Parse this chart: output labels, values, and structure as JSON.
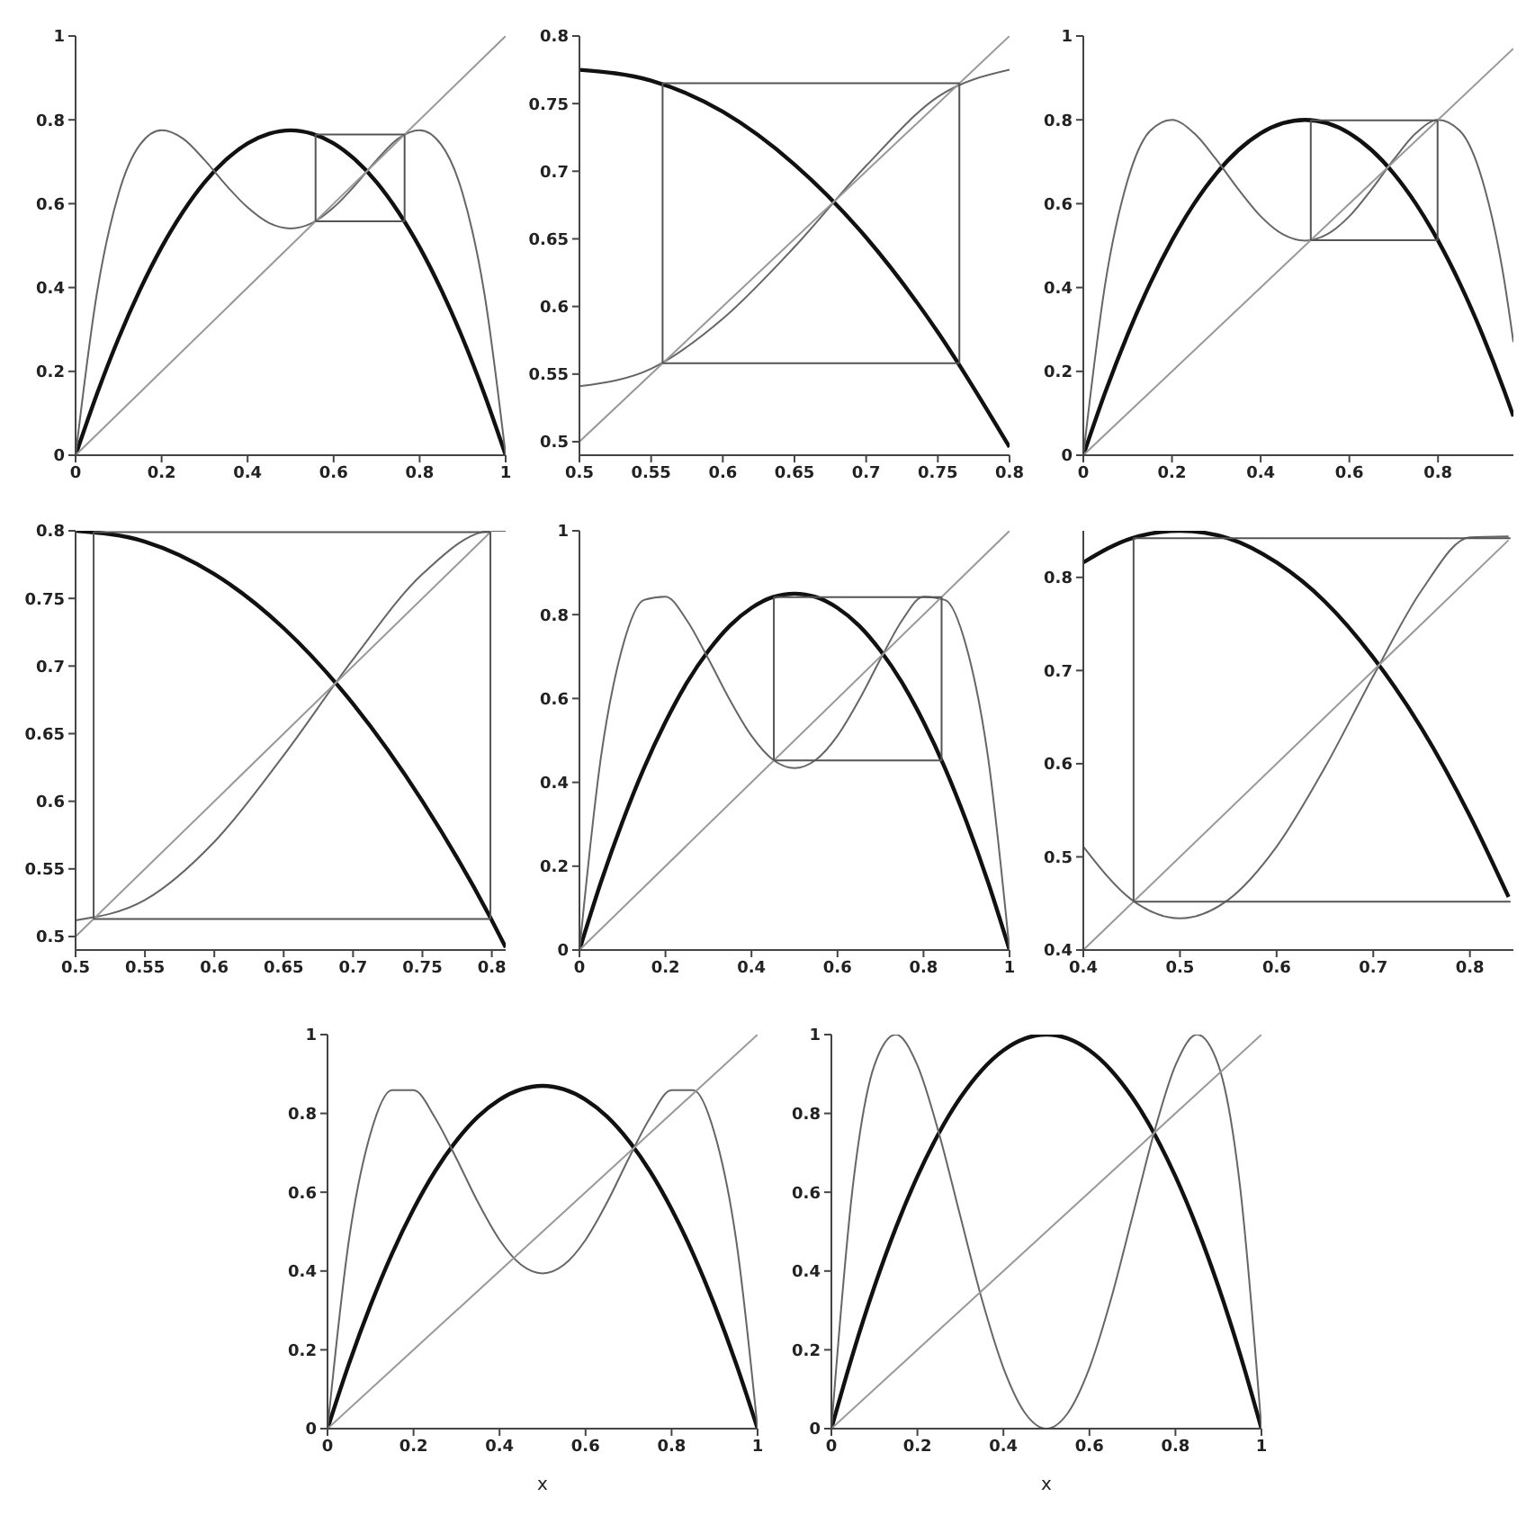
{
  "chart_data": [
    {
      "type": "line",
      "xlim": [
        0,
        1
      ],
      "ylim": [
        0,
        1
      ],
      "xticks": [
        0,
        0.2,
        0.4,
        0.6,
        0.8,
        1
      ],
      "yticks": [
        0,
        0.2,
        0.4,
        0.6,
        0.8,
        1
      ],
      "series": [
        {
          "color": "#111111",
          "x": [
            0,
            0.05,
            0.1,
            0.15,
            0.2,
            0.25,
            0.3,
            0.35,
            0.4,
            0.45,
            0.5,
            0.55,
            0.6,
            0.65,
            0.7,
            0.75,
            0.8,
            0.85,
            0.9,
            0.95,
            1
          ],
          "values": [
            0,
            0.147,
            0.279,
            0.395,
            0.496,
            0.581,
            0.651,
            0.705,
            0.744,
            0.767,
            0.775,
            0.767,
            0.744,
            0.705,
            0.651,
            0.581,
            0.496,
            0.395,
            0.279,
            0.147,
            0
          ]
        },
        {
          "color": "#666666",
          "x": [
            0,
            0.05,
            0.1,
            0.15,
            0.2,
            0.25,
            0.3,
            0.35,
            0.4,
            0.45,
            0.5,
            0.55,
            0.6,
            0.65,
            0.7,
            0.75,
            0.8,
            0.85,
            0.9,
            0.95,
            1
          ],
          "values": [
            0,
            0.389,
            0.624,
            0.741,
            0.775,
            0.755,
            0.704,
            0.644,
            0.591,
            0.554,
            0.541,
            0.554,
            0.591,
            0.644,
            0.704,
            0.755,
            0.775,
            0.741,
            0.624,
            0.389,
            0
          ]
        },
        {
          "color": "#999999",
          "x": [
            0,
            1
          ],
          "values": [
            0,
            1
          ]
        },
        {
          "color": "#555555",
          "x": [
            0.558,
            0.765
          ],
          "values": [
            0.765,
            0.765
          ]
        },
        {
          "color": "#555555",
          "x": [
            0.558,
            0.765
          ],
          "values": [
            0.558,
            0.558
          ]
        },
        {
          "color": "#555555",
          "x": [
            0.558,
            0.558
          ],
          "values": [
            0.558,
            0.765
          ]
        },
        {
          "color": "#555555",
          "x": [
            0.765,
            0.765
          ],
          "values": [
            0.558,
            0.765
          ]
        }
      ]
    },
    {
      "type": "line",
      "xlim": [
        0.5,
        0.8
      ],
      "ylim": [
        0.49,
        0.8
      ],
      "xticks": [
        0.5,
        0.55,
        0.6,
        0.65,
        0.7,
        0.75,
        0.8
      ],
      "yticks": [
        0.5,
        0.55,
        0.6,
        0.65,
        0.7,
        0.75,
        0.8
      ],
      "series": [
        {
          "color": "#111111",
          "x": [
            0.5,
            0.55,
            0.6,
            0.65,
            0.7,
            0.75,
            0.8
          ],
          "values": [
            0.775,
            0.767,
            0.744,
            0.705,
            0.651,
            0.581,
            0.496
          ]
        },
        {
          "color": "#666666",
          "x": [
            0.5,
            0.55,
            0.6,
            0.65,
            0.7,
            0.75,
            0.8
          ],
          "values": [
            0.541,
            0.554,
            0.591,
            0.644,
            0.704,
            0.755,
            0.775
          ]
        },
        {
          "color": "#999999",
          "x": [
            0.5,
            0.8
          ],
          "values": [
            0.5,
            0.8
          ]
        },
        {
          "color": "#555555",
          "x": [
            0.558,
            0.765
          ],
          "values": [
            0.765,
            0.765
          ]
        },
        {
          "color": "#555555",
          "x": [
            0.558,
            0.765
          ],
          "values": [
            0.558,
            0.558
          ]
        },
        {
          "color": "#555555",
          "x": [
            0.558,
            0.558
          ],
          "values": [
            0.558,
            0.765
          ]
        },
        {
          "color": "#555555",
          "x": [
            0.765,
            0.765
          ],
          "values": [
            0.558,
            0.765
          ]
        }
      ]
    },
    {
      "type": "line",
      "xlim": [
        0,
        0.97
      ],
      "ylim": [
        0,
        1
      ],
      "xticks": [
        0,
        0.2,
        0.4,
        0.6,
        0.8
      ],
      "yticks": [
        0,
        0.2,
        0.4,
        0.6,
        0.8,
        1
      ],
      "series": [
        {
          "color": "#111111",
          "x": [
            0,
            0.05,
            0.1,
            0.15,
            0.2,
            0.25,
            0.3,
            0.35,
            0.4,
            0.45,
            0.5,
            0.55,
            0.6,
            0.65,
            0.7,
            0.75,
            0.8,
            0.85,
            0.9,
            0.95,
            0.97
          ],
          "values": [
            0,
            0.152,
            0.288,
            0.408,
            0.512,
            0.6,
            0.672,
            0.728,
            0.768,
            0.792,
            0.8,
            0.792,
            0.768,
            0.728,
            0.672,
            0.6,
            0.512,
            0.408,
            0.288,
            0.152,
            0.093
          ]
        },
        {
          "color": "#666666",
          "x": [
            0,
            0.05,
            0.1,
            0.15,
            0.2,
            0.25,
            0.3,
            0.35,
            0.4,
            0.45,
            0.5,
            0.55,
            0.6,
            0.65,
            0.7,
            0.75,
            0.8,
            0.85,
            0.9,
            0.95,
            0.97
          ],
          "values": [
            0,
            0.413,
            0.656,
            0.773,
            0.8,
            0.768,
            0.705,
            0.634,
            0.57,
            0.527,
            0.512,
            0.527,
            0.57,
            0.634,
            0.705,
            0.768,
            0.8,
            0.773,
            0.656,
            0.413,
            0.27
          ]
        },
        {
          "color": "#999999",
          "x": [
            0,
            0.97
          ],
          "values": [
            0,
            0.97
          ]
        },
        {
          "color": "#555555",
          "x": [
            0.513,
            0.799
          ],
          "values": [
            0.799,
            0.799
          ]
        },
        {
          "color": "#555555",
          "x": [
            0.513,
            0.799
          ],
          "values": [
            0.513,
            0.513
          ]
        },
        {
          "color": "#555555",
          "x": [
            0.513,
            0.513
          ],
          "values": [
            0.513,
            0.799
          ]
        },
        {
          "color": "#555555",
          "x": [
            0.799,
            0.799
          ],
          "values": [
            0.513,
            0.799
          ]
        }
      ]
    },
    {
      "type": "line",
      "xlim": [
        0.5,
        0.81
      ],
      "ylim": [
        0.49,
        0.8
      ],
      "xticks": [
        0.5,
        0.55,
        0.6,
        0.65,
        0.7,
        0.75,
        0.8
      ],
      "yticks": [
        0.5,
        0.55,
        0.6,
        0.65,
        0.7,
        0.75,
        0.8
      ],
      "series": [
        {
          "color": "#111111",
          "x": [
            0.5,
            0.55,
            0.6,
            0.65,
            0.7,
            0.75,
            0.8,
            0.81
          ],
          "values": [
            0.8,
            0.792,
            0.768,
            0.728,
            0.672,
            0.6,
            0.512,
            0.492
          ]
        },
        {
          "color": "#666666",
          "x": [
            0.5,
            0.55,
            0.6,
            0.65,
            0.7,
            0.75,
            0.8,
            0.81
          ],
          "values": [
            0.512,
            0.527,
            0.57,
            0.634,
            0.705,
            0.768,
            0.8,
            0.8
          ]
        },
        {
          "color": "#999999",
          "x": [
            0.5,
            0.8
          ],
          "values": [
            0.5,
            0.8
          ]
        },
        {
          "color": "#555555",
          "x": [
            0.513,
            0.799
          ],
          "values": [
            0.799,
            0.799
          ]
        },
        {
          "color": "#555555",
          "x": [
            0.513,
            0.799
          ],
          "values": [
            0.513,
            0.513
          ]
        },
        {
          "color": "#555555",
          "x": [
            0.513,
            0.513
          ],
          "values": [
            0.513,
            0.799
          ]
        },
        {
          "color": "#555555",
          "x": [
            0.799,
            0.799
          ],
          "values": [
            0.513,
            0.799
          ]
        }
      ]
    },
    {
      "type": "line",
      "xlim": [
        0,
        1
      ],
      "ylim": [
        0,
        1
      ],
      "xticks": [
        0,
        0.2,
        0.4,
        0.6,
        0.8,
        1
      ],
      "yticks": [
        0,
        0.2,
        0.4,
        0.6,
        0.8,
        1
      ],
      "series": [
        {
          "color": "#111111",
          "x": [
            0,
            0.05,
            0.1,
            0.15,
            0.2,
            0.25,
            0.3,
            0.35,
            0.4,
            0.45,
            0.5,
            0.55,
            0.6,
            0.65,
            0.7,
            0.75,
            0.8,
            0.85,
            0.9,
            0.95,
            1
          ],
          "values": [
            0,
            0.162,
            0.306,
            0.434,
            0.544,
            0.638,
            0.714,
            0.774,
            0.816,
            0.842,
            0.85,
            0.842,
            0.816,
            0.774,
            0.714,
            0.638,
            0.544,
            0.434,
            0.306,
            0.162,
            0
          ]
        },
        {
          "color": "#666666",
          "x": [
            0,
            0.05,
            0.1,
            0.15,
            0.2,
            0.25,
            0.3,
            0.35,
            0.4,
            0.45,
            0.5,
            0.55,
            0.6,
            0.65,
            0.7,
            0.75,
            0.8,
            0.85,
            0.9,
            0.95,
            1
          ],
          "values": [
            0,
            0.46,
            0.722,
            0.835,
            0.843,
            0.786,
            0.694,
            0.596,
            0.511,
            0.454,
            0.434,
            0.454,
            0.511,
            0.596,
            0.694,
            0.786,
            0.843,
            0.835,
            0.722,
            0.46,
            0
          ]
        },
        {
          "color": "#999999",
          "x": [
            0,
            1
          ],
          "values": [
            0,
            1
          ]
        },
        {
          "color": "#555555",
          "x": [
            0.452,
            0.842
          ],
          "values": [
            0.842,
            0.842
          ]
        },
        {
          "color": "#555555",
          "x": [
            0.452,
            0.842
          ],
          "values": [
            0.452,
            0.452
          ]
        },
        {
          "color": "#555555",
          "x": [
            0.452,
            0.452
          ],
          "values": [
            0.452,
            0.842
          ]
        },
        {
          "color": "#555555",
          "x": [
            0.842,
            0.842
          ],
          "values": [
            0.452,
            0.842
          ]
        }
      ]
    },
    {
      "type": "line",
      "xlim": [
        0.4,
        0.845
      ],
      "ylim": [
        0.4,
        0.85
      ],
      "xticks": [
        0.4,
        0.5,
        0.6,
        0.7,
        0.8
      ],
      "yticks": [
        0.4,
        0.5,
        0.6,
        0.7,
        0.8
      ],
      "series": [
        {
          "color": "#111111",
          "x": [
            0.4,
            0.45,
            0.5,
            0.55,
            0.6,
            0.65,
            0.7,
            0.75,
            0.8,
            0.84
          ],
          "values": [
            0.816,
            0.842,
            0.85,
            0.842,
            0.816,
            0.774,
            0.714,
            0.638,
            0.544,
            0.457
          ]
        },
        {
          "color": "#666666",
          "x": [
            0.4,
            0.45,
            0.5,
            0.55,
            0.6,
            0.65,
            0.7,
            0.75,
            0.8,
            0.84
          ],
          "values": [
            0.511,
            0.454,
            0.434,
            0.454,
            0.511,
            0.596,
            0.694,
            0.786,
            0.843,
            0.844
          ]
        },
        {
          "color": "#999999",
          "x": [
            0.4,
            0.84
          ],
          "values": [
            0.4,
            0.84
          ]
        },
        {
          "color": "#555555",
          "x": [
            0.452,
            0.842
          ],
          "values": [
            0.842,
            0.842
          ]
        },
        {
          "color": "#555555",
          "x": [
            0.452,
            0.842
          ],
          "values": [
            0.452,
            0.452
          ]
        },
        {
          "color": "#555555",
          "x": [
            0.452,
            0.452
          ],
          "values": [
            0.452,
            0.842
          ]
        }
      ]
    },
    {
      "type": "line",
      "xlabel": "x",
      "xlim": [
        0,
        1
      ],
      "ylim": [
        0,
        1
      ],
      "xticks": [
        0,
        0.2,
        0.4,
        0.6,
        0.8,
        1
      ],
      "yticks": [
        0,
        0.2,
        0.4,
        0.6,
        0.8,
        1
      ],
      "series": [
        {
          "color": "#111111",
          "x": [
            0,
            0.05,
            0.1,
            0.15,
            0.2,
            0.25,
            0.3,
            0.35,
            0.4,
            0.45,
            0.5,
            0.55,
            0.6,
            0.65,
            0.7,
            0.75,
            0.8,
            0.85,
            0.9,
            0.95,
            1
          ],
          "values": [
            0,
            0.165,
            0.313,
            0.444,
            0.557,
            0.653,
            0.731,
            0.792,
            0.835,
            0.861,
            0.87,
            0.861,
            0.835,
            0.792,
            0.731,
            0.653,
            0.557,
            0.444,
            0.313,
            0.165,
            0
          ]
        },
        {
          "color": "#666666",
          "x": [
            0,
            0.05,
            0.1,
            0.15,
            0.2,
            0.25,
            0.3,
            0.35,
            0.4,
            0.45,
            0.5,
            0.55,
            0.6,
            0.65,
            0.7,
            0.75,
            0.8,
            0.85,
            0.9,
            0.95,
            1
          ],
          "values": [
            0,
            0.48,
            0.749,
            0.859,
            0.859,
            0.789,
            0.685,
            0.574,
            0.479,
            0.416,
            0.394,
            0.416,
            0.479,
            0.574,
            0.685,
            0.789,
            0.859,
            0.859,
            0.749,
            0.48,
            0
          ]
        },
        {
          "color": "#999999",
          "x": [
            0,
            1
          ],
          "values": [
            0,
            1
          ]
        }
      ]
    },
    {
      "type": "line",
      "xlabel": "x",
      "xlim": [
        0,
        1
      ],
      "ylim": [
        0,
        1
      ],
      "xticks": [
        0,
        0.2,
        0.4,
        0.6,
        0.8,
        1
      ],
      "yticks": [
        0,
        0.2,
        0.4,
        0.6,
        0.8,
        1
      ],
      "series": [
        {
          "color": "#111111",
          "x": [
            0,
            0.05,
            0.1,
            0.15,
            0.2,
            0.25,
            0.3,
            0.35,
            0.4,
            0.45,
            0.5,
            0.55,
            0.6,
            0.65,
            0.7,
            0.75,
            0.8,
            0.85,
            0.9,
            0.95,
            1
          ],
          "values": [
            0,
            0.19,
            0.36,
            0.51,
            0.64,
            0.75,
            0.84,
            0.91,
            0.96,
            0.99,
            1,
            0.99,
            0.96,
            0.91,
            0.84,
            0.75,
            0.64,
            0.51,
            0.36,
            0.19,
            0
          ]
        },
        {
          "color": "#666666",
          "x": [
            0,
            0.05,
            0.1,
            0.15,
            0.2,
            0.25,
            0.3,
            0.35,
            0.4,
            0.45,
            0.5,
            0.55,
            0.6,
            0.65,
            0.7,
            0.75,
            0.8,
            0.85,
            0.9,
            0.95,
            1
          ],
          "values": [
            0,
            0.616,
            0.922,
            1,
            0.922,
            0.75,
            0.538,
            0.328,
            0.154,
            0.04,
            0,
            0.04,
            0.154,
            0.328,
            0.538,
            0.75,
            0.922,
            1,
            0.922,
            0.616,
            0
          ]
        },
        {
          "color": "#999999",
          "x": [
            0,
            1
          ],
          "values": [
            0,
            1
          ]
        }
      ]
    }
  ]
}
